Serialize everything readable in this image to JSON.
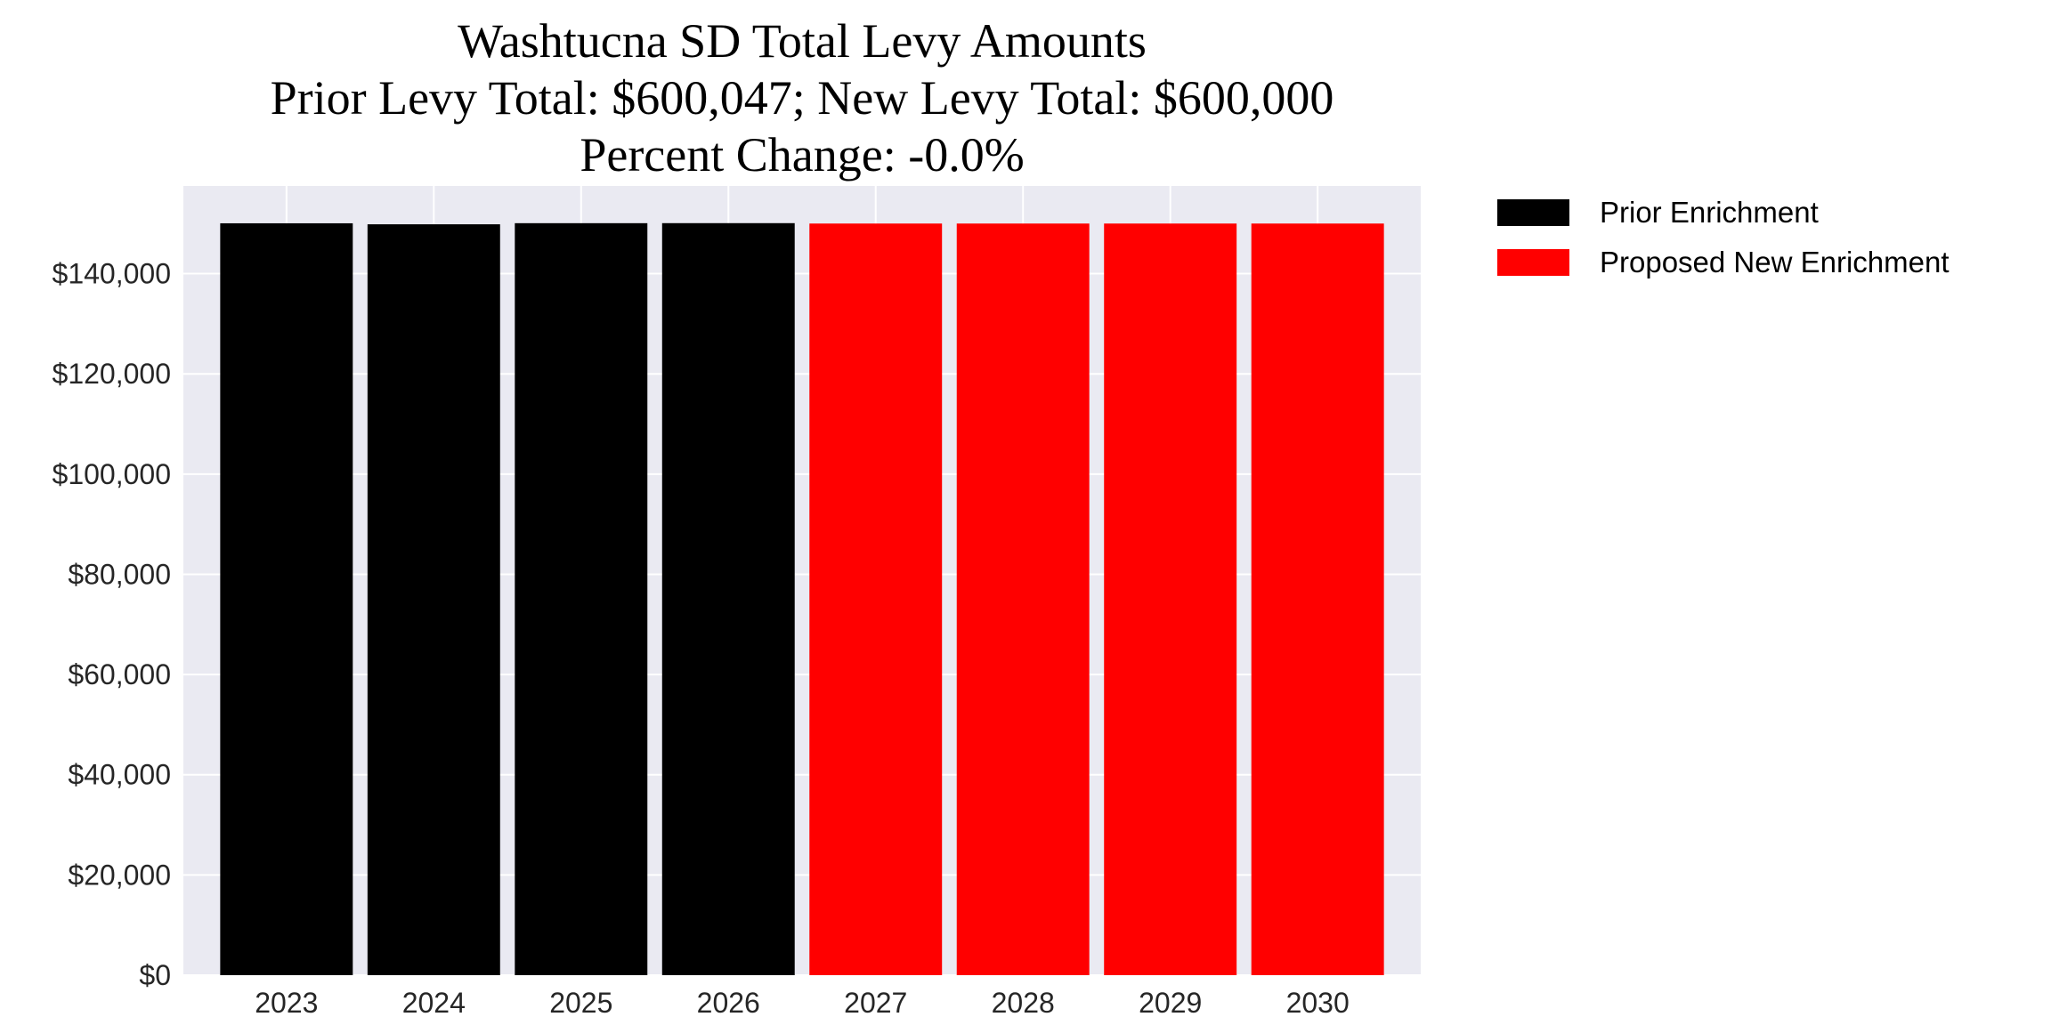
{
  "chart_data": {
    "type": "bar",
    "title_lines": [
      "Washtucna SD Total Levy Amounts",
      "Prior Levy Total:  $600,047; New Levy Total: $600,000",
      "Percent Change: -0.0%"
    ],
    "xlabel": "",
    "ylabel": "",
    "categories": [
      "2023",
      "2024",
      "2025",
      "2026",
      "2027",
      "2028",
      "2029",
      "2030"
    ],
    "series": [
      {
        "name": "Prior Enrichment",
        "color": "#000000",
        "values": [
          150050,
          149850,
          150070,
          150077,
          null,
          null,
          null,
          null
        ]
      },
      {
        "name": "Proposed New Enrichment",
        "color": "#ff0000",
        "values": [
          null,
          null,
          null,
          null,
          150000,
          150000,
          150000,
          150000
        ]
      }
    ],
    "ylim": [
      0,
      157500
    ],
    "yticks": [
      0,
      20000,
      40000,
      60000,
      80000,
      100000,
      120000,
      140000
    ],
    "ytick_labels": [
      "$0",
      "$20,000",
      "$40,000",
      "$60,000",
      "$80,000",
      "$100,000",
      "$120,000",
      "$140,000"
    ],
    "grid": true,
    "background": "#eaeaf2",
    "legend_placement": "outside-top-right"
  }
}
